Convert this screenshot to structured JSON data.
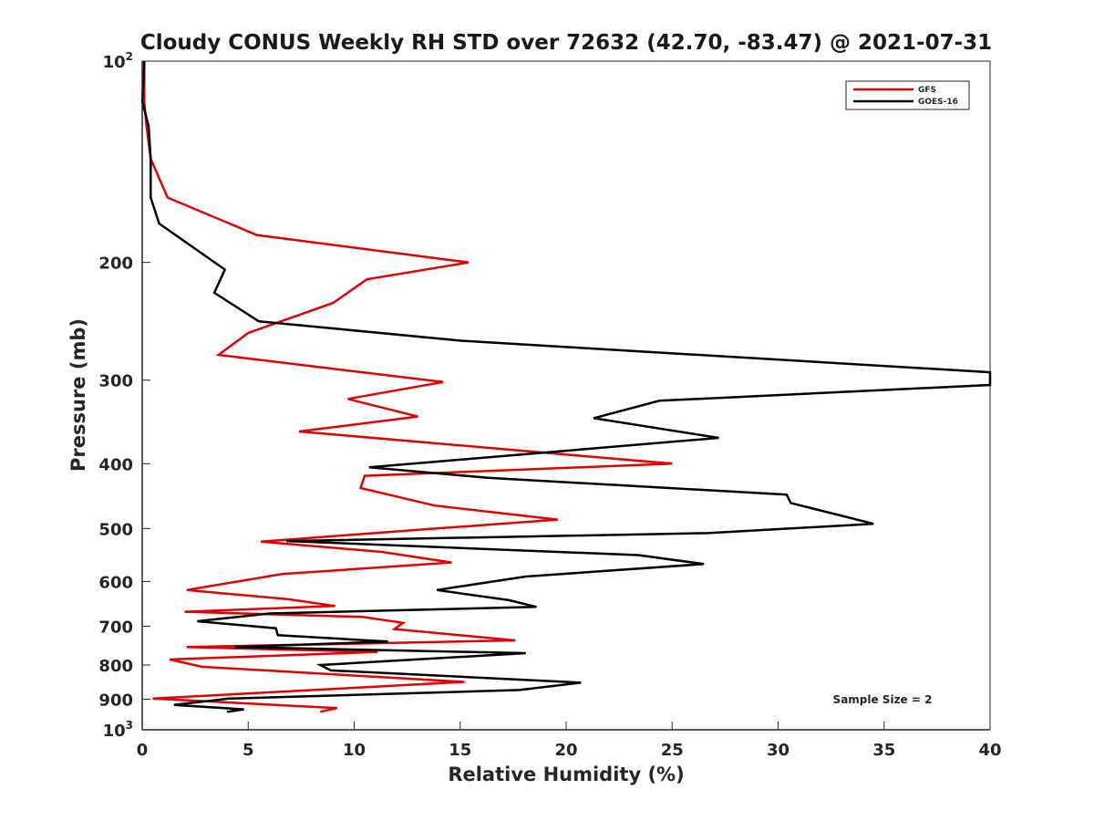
{
  "chart_data": {
    "type": "line",
    "title": "Cloudy CONUS Weekly RH STD over 72632 (42.70, -83.47) @ 2021-07-31",
    "xlabel": "Relative Humidity (%)",
    "ylabel": "Pressure (mb)",
    "xlim": [
      0,
      40
    ],
    "ylim": [
      100,
      1000
    ],
    "yscale": "log",
    "y_reversed": true,
    "grid": false,
    "legend_position": "top-right",
    "x_ticks": [
      0,
      5,
      10,
      15,
      20,
      25,
      30,
      35,
      40
    ],
    "y_ticks": [
      {
        "value": 100,
        "base": "10",
        "exp": "2"
      },
      {
        "value": 200,
        "label": "200"
      },
      {
        "value": 300,
        "label": "300"
      },
      {
        "value": 400,
        "label": "400"
      },
      {
        "value": 500,
        "label": "500"
      },
      {
        "value": 600,
        "label": "600"
      },
      {
        "value": 700,
        "label": "700"
      },
      {
        "value": 800,
        "label": "800"
      },
      {
        "value": 900,
        "label": "900"
      },
      {
        "value": 1000,
        "base": "10",
        "exp": "3"
      }
    ],
    "series": [
      {
        "name": "GFS",
        "color": "#e00000",
        "points": [
          [
            0.1,
            100
          ],
          [
            0.1,
            115
          ],
          [
            0.2,
            125
          ],
          [
            0.4,
            140
          ],
          [
            1.2,
            160
          ],
          [
            5.4,
            182
          ],
          [
            15.4,
            200
          ],
          [
            10.6,
            212
          ],
          [
            9.0,
            230
          ],
          [
            5.0,
            255
          ],
          [
            3.6,
            275
          ],
          [
            14.2,
            302
          ],
          [
            9.7,
            320
          ],
          [
            13.0,
            340
          ],
          [
            7.4,
            358
          ],
          [
            25.0,
            400
          ],
          [
            10.5,
            417
          ],
          [
            10.3,
            435
          ],
          [
            13.8,
            462
          ],
          [
            19.6,
            485
          ],
          [
            13.9,
            500
          ],
          [
            5.6,
            523
          ],
          [
            11.3,
            542
          ],
          [
            14.6,
            562
          ],
          [
            6.6,
            585
          ],
          [
            2.1,
            618
          ],
          [
            6.9,
            638
          ],
          [
            9.1,
            653
          ],
          [
            2.0,
            666
          ],
          [
            10.4,
            678
          ],
          [
            12.3,
            692
          ],
          [
            11.9,
            707
          ],
          [
            17.6,
            735
          ],
          [
            2.1,
            752
          ],
          [
            11.1,
            765
          ],
          [
            1.3,
            785
          ],
          [
            2.8,
            805
          ],
          [
            15.2,
            848
          ],
          [
            0.5,
            898
          ],
          [
            9.2,
            928
          ],
          [
            8.4,
            940
          ]
        ]
      },
      {
        "name": "GOES-16",
        "color": "#000000",
        "points": [
          [
            0.1,
            100
          ],
          [
            0.0,
            115
          ],
          [
            0.3,
            125
          ],
          [
            0.4,
            140
          ],
          [
            0.4,
            160
          ],
          [
            0.8,
            175
          ],
          [
            3.9,
            205
          ],
          [
            3.4,
            222
          ],
          [
            5.5,
            245
          ],
          [
            15.1,
            262
          ],
          [
            40.0,
            292
          ],
          [
            40.0,
            305
          ],
          [
            24.4,
            322
          ],
          [
            21.3,
            342
          ],
          [
            27.2,
            366
          ],
          [
            10.7,
            405
          ],
          [
            16.3,
            420
          ],
          [
            30.4,
            445
          ],
          [
            30.6,
            458
          ],
          [
            34.5,
            492
          ],
          [
            26.7,
            508
          ],
          [
            6.8,
            522
          ],
          [
            23.4,
            548
          ],
          [
            26.5,
            565
          ],
          [
            18.1,
            590
          ],
          [
            13.9,
            618
          ],
          [
            17.3,
            640
          ],
          [
            18.6,
            655
          ],
          [
            6.0,
            670
          ],
          [
            2.6,
            688
          ],
          [
            6.3,
            705
          ],
          [
            6.4,
            722
          ],
          [
            11.6,
            738
          ],
          [
            4.4,
            752
          ],
          [
            18.1,
            768
          ],
          [
            8.4,
            800
          ],
          [
            8.9,
            815
          ],
          [
            20.7,
            850
          ],
          [
            17.8,
            872
          ],
          [
            4.1,
            898
          ],
          [
            1.5,
            918
          ],
          [
            4.8,
            932
          ],
          [
            4.0,
            940
          ]
        ]
      }
    ],
    "annotation": "Sample Size = 2"
  }
}
